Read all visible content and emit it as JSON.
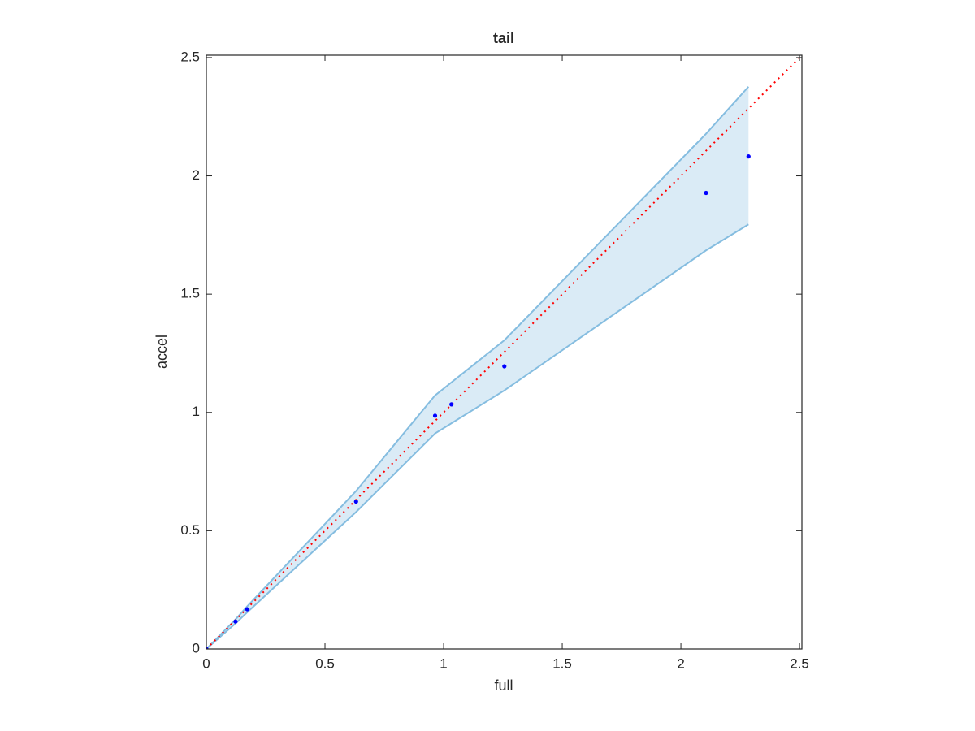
{
  "chart_data": {
    "type": "scatter",
    "title": "tail",
    "xlabel": "full",
    "ylabel": "accel",
    "xlim": [
      0,
      2.51
    ],
    "ylim": [
      0,
      2.51
    ],
    "xticks": [
      0,
      0.5,
      1,
      1.5,
      2,
      2.5
    ],
    "yticks": [
      0,
      0.5,
      1,
      1.5,
      2,
      2.5
    ],
    "band": {
      "color": "#85bde0",
      "x": [
        0,
        0.123,
        0.172,
        0.631,
        0.964,
        1.256,
        2.106,
        2.285
      ],
      "upper": [
        0,
        0.125,
        0.18,
        0.668,
        1.072,
        1.305,
        2.178,
        2.377
      ],
      "lower": [
        0,
        0.108,
        0.155,
        0.579,
        0.911,
        1.093,
        1.685,
        1.795
      ]
    },
    "points": {
      "color": "#0000ff",
      "x": [
        0,
        0.123,
        0.172,
        0.631,
        0.964,
        1.033,
        1.256,
        2.106,
        2.285
      ],
      "y": [
        0,
        0.116,
        0.168,
        0.623,
        0.986,
        1.034,
        1.195,
        1.928,
        2.082
      ]
    },
    "reference_line": {
      "color": "#ff0000",
      "x": [
        0,
        2.51
      ],
      "y": [
        0,
        2.51
      ]
    }
  }
}
